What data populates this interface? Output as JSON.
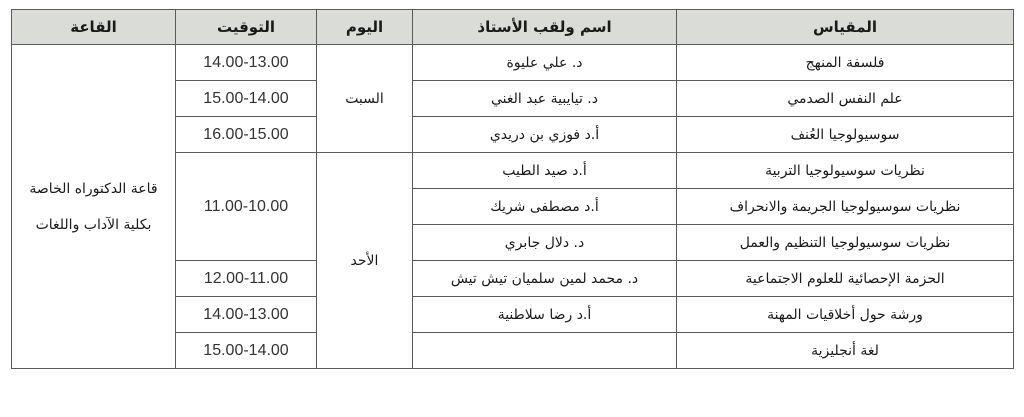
{
  "headers": {
    "course": "المقياس",
    "professor": "اسم ولقب الأستاذ",
    "day": "اليوم",
    "time": "التوقيت",
    "hall": "القاعة"
  },
  "hall": "قاعة الدكتوراه الخاصة بكلية الآداب واللغات",
  "days": {
    "saturday": "السبت",
    "sunday": "الأحد"
  },
  "rows": [
    {
      "course": "فلسفة المنهج",
      "professor": "د. علي عليوة",
      "time": "14.00-13.00"
    },
    {
      "course": "علم النفس الصدمي",
      "professor": "د. تيايبية عبد الغني",
      "time": "15.00-14.00"
    },
    {
      "course": "سوسيولوجيا العُنف",
      "professor": "أ.د فوزي بن دريدي",
      "time": "16.00-15.00"
    },
    {
      "course": "نظريات سوسيولوجيا التربية",
      "professor": "أ.د  صيد الطيب",
      "time": "11.00-10.00"
    },
    {
      "course": "نظريات سوسيولوجيا الجريمة والانحراف",
      "professor": "أ.د مصطفى شريك",
      "time": ""
    },
    {
      "course": "نظريات سوسيولوجيا التنظيم والعمل",
      "professor": "د. دلال جابري",
      "time": ""
    },
    {
      "course": "الحزمة الإحصائية للعلوم الاجتماعية",
      "professor": "د. محمد لمين سلميان تيش تيش",
      "time": "12.00-11.00"
    },
    {
      "course": "ورشة حول أخلاقيات المهنة",
      "professor": "أ.د رضا سلاطنية",
      "time": "14.00-13.00"
    },
    {
      "course": "لغة أنجليزية",
      "professor": "",
      "time": "15.00-14.00"
    }
  ]
}
